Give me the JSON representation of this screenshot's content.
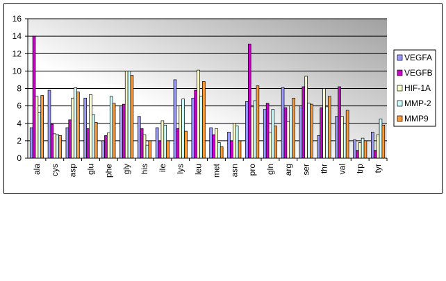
{
  "chart_data": {
    "type": "bar",
    "categories": [
      "ala",
      "cys",
      "asp",
      "glu",
      "phe",
      "gly",
      "his",
      "ile",
      "lys",
      "leu",
      "met",
      "asn",
      "pro",
      "gln",
      "arg",
      "ser",
      "thr",
      "val",
      "trp",
      "tyr"
    ],
    "series": [
      {
        "name": "VEGFA",
        "color": "#9999ff",
        "values": [
          3.5,
          7.8,
          3.5,
          6.9,
          2.0,
          6.0,
          4.8,
          3.5,
          9.0,
          6.9,
          3.5,
          3.0,
          6.5,
          5.6,
          8.1,
          6.0,
          2.6,
          4.8,
          2.1,
          3.0
        ]
      },
      {
        "name": "VEGFB",
        "color": "#cc00cc",
        "values": [
          14.0,
          3.9,
          4.4,
          3.4,
          2.6,
          6.2,
          3.4,
          2.0,
          3.4,
          7.8,
          2.7,
          2.0,
          13.1,
          6.3,
          5.8,
          8.2,
          5.8,
          8.2,
          0.9,
          0.9
        ]
      },
      {
        "name": "HIF-1A",
        "color": "#ffffcc",
        "values": [
          7.1,
          2.8,
          6.9,
          7.3,
          2.9,
          10.0,
          2.7,
          4.3,
          6.0,
          10.1,
          3.4,
          4.0,
          5.9,
          2.9,
          4.2,
          9.4,
          8.0,
          4.8,
          1.8,
          2.7
        ]
      },
      {
        "name": "MMP-2",
        "color": "#ccffff",
        "values": [
          5.2,
          2.7,
          8.1,
          5.0,
          7.1,
          10.0,
          1.5,
          3.8,
          6.8,
          7.1,
          1.8,
          3.7,
          6.6,
          5.6,
          6.0,
          6.3,
          5.9,
          4.0,
          2.3,
          4.5
        ]
      },
      {
        "name": "MMP9",
        "color": "#ff9933",
        "values": [
          7.2,
          2.6,
          7.6,
          4.1,
          6.3,
          9.5,
          2.0,
          2.0,
          3.1,
          8.8,
          1.3,
          2.0,
          8.3,
          3.7,
          6.9,
          6.2,
          7.1,
          5.5,
          2.0,
          3.8
        ]
      }
    ],
    "ylim": [
      0,
      16
    ],
    "yticks": [
      0,
      2,
      4,
      6,
      8,
      10,
      12,
      14,
      16
    ],
    "grid": true,
    "legend": "right"
  }
}
